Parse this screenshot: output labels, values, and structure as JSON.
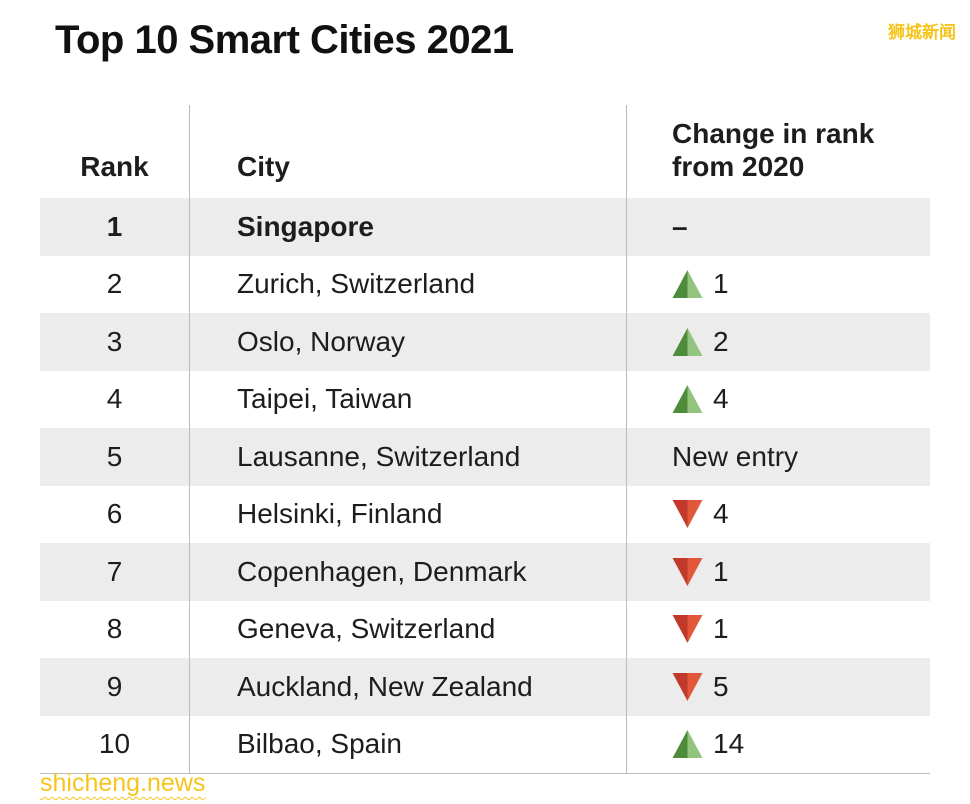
{
  "page": {
    "watermark_top": "狮城新闻",
    "watermark_bottom": "shicheng.news"
  },
  "colors": {
    "up_dark": "#4e8c3b",
    "up_light": "#93c47d",
    "down_dark": "#c0392b",
    "down_light": "#e2573a",
    "alt_row_bg": "#ececec",
    "watermark": "#f6c51d",
    "divider": "#bcbcbc"
  },
  "chart_data": {
    "type": "table",
    "title": "Top 10 Smart Cities 2021",
    "columns": {
      "rank": "Rank",
      "city": "City",
      "change": "Change in rank from 2020"
    },
    "rows": [
      {
        "rank": "1",
        "city": "Singapore",
        "direction": "none",
        "change": "–",
        "bold": true
      },
      {
        "rank": "2",
        "city": "Zurich, Switzerland",
        "direction": "up",
        "change": "1",
        "bold": false
      },
      {
        "rank": "3",
        "city": "Oslo, Norway",
        "direction": "up",
        "change": "2",
        "bold": false
      },
      {
        "rank": "4",
        "city": "Taipei, Taiwan",
        "direction": "up",
        "change": "4",
        "bold": false
      },
      {
        "rank": "5",
        "city": "Lausanne, Switzerland",
        "direction": "none",
        "change": "New entry",
        "bold": false
      },
      {
        "rank": "6",
        "city": "Helsinki, Finland",
        "direction": "down",
        "change": "4",
        "bold": false
      },
      {
        "rank": "7",
        "city": "Copenhagen, Denmark",
        "direction": "down",
        "change": "1",
        "bold": false
      },
      {
        "rank": "8",
        "city": "Geneva, Switzerland",
        "direction": "down",
        "change": "1",
        "bold": false
      },
      {
        "rank": "9",
        "city": "Auckland, New Zealand",
        "direction": "down",
        "change": "5",
        "bold": false
      },
      {
        "rank": "10",
        "city": "Bilbao, Spain",
        "direction": "up",
        "change": "14",
        "bold": false
      }
    ]
  }
}
